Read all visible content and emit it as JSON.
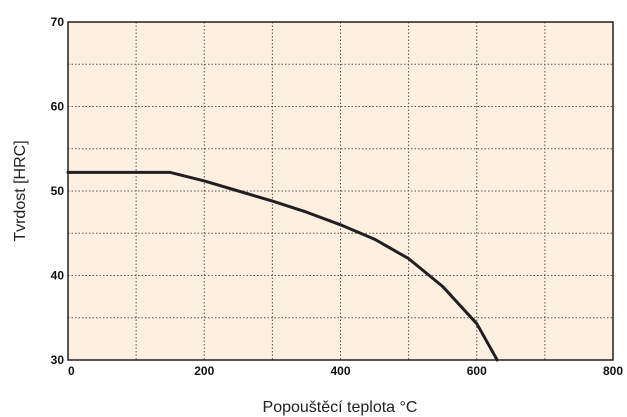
{
  "chart_data": {
    "type": "line",
    "title": "",
    "xlabel": "Popouštěcí teplota °C",
    "ylabel": "Tvrdost [HRC]",
    "xlim": [
      0,
      800
    ],
    "ylim": [
      30,
      70
    ],
    "x_ticks": [
      "0",
      "200",
      "400",
      "600",
      "800"
    ],
    "y_ticks": [
      "30",
      "40",
      "50",
      "60",
      "70"
    ],
    "grid": true,
    "grid_style": "dotted",
    "plot_background": "#fdf0e0",
    "line_color": "#231f20",
    "series": [
      {
        "x": [
          0,
          150,
          200,
          250,
          300,
          350,
          400,
          450,
          500,
          550,
          600,
          630
        ],
        "y": [
          52.2,
          52.2,
          51.2,
          50.0,
          48.8,
          47.5,
          46.0,
          44.3,
          42.0,
          38.7,
          34.3,
          30.0
        ]
      }
    ]
  }
}
